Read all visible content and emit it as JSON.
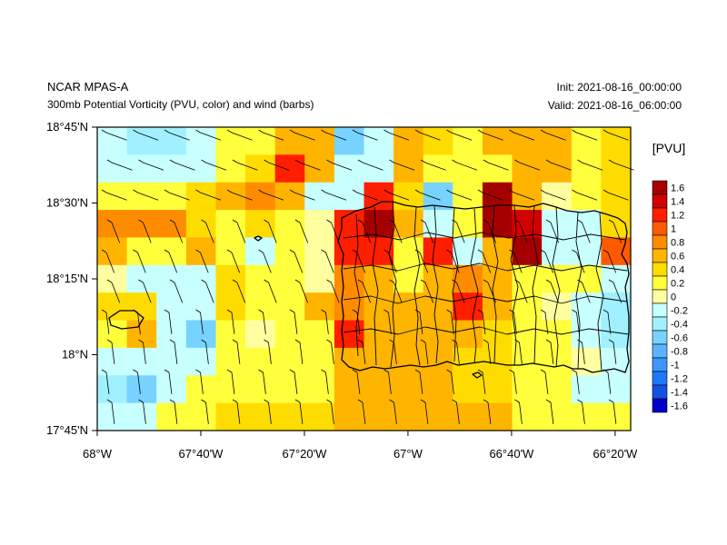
{
  "header": {
    "title": "NCAR MPAS-A",
    "subtitle": "300mb Potential Vorticity (PVU, color) and wind (barbs)",
    "init": "Init: 2021-08-16_00:00:00",
    "valid": "Valid: 2021-08-16_06:00:00"
  },
  "chart_data": {
    "type": "heatmap",
    "title": "300mb Potential Vorticity (PVU, color) and wind (barbs)",
    "units": "[PVU]",
    "lon_range": [
      -68.0,
      -66.2833
    ],
    "lat_range": [
      17.75,
      18.75
    ],
    "x_tick_labels": [
      "68°W",
      "67°40'W",
      "67°20'W",
      "67°W",
      "66°40'W",
      "66°20'W"
    ],
    "x_tick_values": [
      -68.0,
      -67.6667,
      -67.3333,
      -67.0,
      -66.6667,
      -66.3333
    ],
    "y_tick_labels": [
      "18°45'N",
      "18°30'N",
      "18°15'N",
      "18°N",
      "17°45'N"
    ],
    "y_tick_values": [
      18.75,
      18.5,
      18.25,
      18.0,
      17.75
    ],
    "levels": [
      1.6,
      1.4,
      1.2,
      1,
      0.8,
      0.6,
      0.4,
      0.2,
      0,
      -0.2,
      -0.4,
      -0.6,
      -0.8,
      -1,
      -1.2,
      -1.4,
      -1.6
    ],
    "level_labels": [
      "1.6",
      "1.4",
      "1.2",
      "1",
      "0.8",
      "0.6",
      "0.4",
      "0.2",
      "0",
      "-0.2",
      "-0.4",
      "-0.6",
      "-0.8",
      "-1",
      "-1.2",
      "-1.4",
      "-1.6"
    ],
    "colors": [
      "#a50000",
      "#d20000",
      "#ff1e00",
      "#ff5a00",
      "#ff8c00",
      "#ffb400",
      "#ffdc00",
      "#ffff3c",
      "#ffffa0",
      "#c8ffff",
      "#a0f0ff",
      "#78d2ff",
      "#5ab4ff",
      "#3c96ff",
      "#1e78ff",
      "#1450e6",
      "#0000c8"
    ],
    "pv_grid": [
      [
        -0.1,
        -0.3,
        -0.3,
        -0.1,
        0.3,
        0.3,
        0.7,
        0.7,
        -0.5,
        -0.1,
        0.7,
        0.5,
        0.3,
        0.7,
        0.7,
        0.7,
        0.3,
        0.5
      ],
      [
        -0.1,
        -0.1,
        -0.1,
        -0.1,
        0.3,
        0.5,
        1.3,
        0.7,
        -0.1,
        -0.1,
        0.7,
        0.3,
        0.3,
        0.3,
        0.7,
        0.7,
        0.3,
        0.5
      ],
      [
        0.3,
        0.3,
        0.3,
        0.5,
        0.7,
        0.9,
        0.7,
        -0.1,
        -0.1,
        1.3,
        0.5,
        -0.5,
        0.3,
        1.7,
        0.7,
        0.1,
        0.3,
        0.5
      ],
      [
        0.9,
        0.9,
        0.9,
        0.5,
        0.3,
        0.5,
        0.3,
        0.1,
        1.3,
        1.7,
        0.7,
        -0.1,
        0.3,
        1.7,
        1.5,
        -0.1,
        -0.1,
        0.5
      ],
      [
        0.7,
        0.3,
        0.3,
        0.7,
        0.3,
        -0.1,
        0.3,
        0.1,
        1.3,
        1.3,
        0.3,
        1.3,
        -0.1,
        0.7,
        1.7,
        -0.1,
        -0.1,
        1.1
      ],
      [
        0.1,
        -0.1,
        -0.1,
        -0.1,
        0.5,
        0.3,
        0.3,
        0.1,
        0.9,
        0.7,
        0.3,
        0.7,
        0.9,
        0.7,
        0.3,
        0.3,
        0.3,
        -0.1
      ],
      [
        0.5,
        0.5,
        -0.1,
        -0.1,
        0.5,
        0.3,
        0.3,
        0.7,
        0.9,
        0.7,
        0.7,
        0.7,
        1.3,
        0.7,
        0.3,
        0.1,
        -0.1,
        -0.3
      ],
      [
        0.3,
        0.7,
        -0.1,
        -0.5,
        0.3,
        0.1,
        0.3,
        0.3,
        1.3,
        0.7,
        0.7,
        0.7,
        0.7,
        0.5,
        0.3,
        0.3,
        -0.1,
        -0.3
      ],
      [
        -0.1,
        -0.1,
        -0.1,
        -0.1,
        0.3,
        0.3,
        0.3,
        0.3,
        0.7,
        0.7,
        0.7,
        0.7,
        0.5,
        0.5,
        0.3,
        0.3,
        0.1,
        -0.1
      ],
      [
        -0.3,
        -0.5,
        -0.1,
        0.3,
        0.3,
        0.3,
        0.3,
        0.3,
        0.7,
        0.7,
        0.7,
        0.7,
        0.5,
        0.5,
        0.3,
        0.3,
        -0.1,
        -0.1
      ],
      [
        -0.1,
        -0.1,
        0.3,
        0.3,
        0.5,
        0.5,
        0.5,
        0.5,
        0.7,
        0.7,
        0.7,
        0.7,
        0.7,
        0.7,
        0.3,
        0.3,
        0.3,
        0.3
      ]
    ]
  }
}
